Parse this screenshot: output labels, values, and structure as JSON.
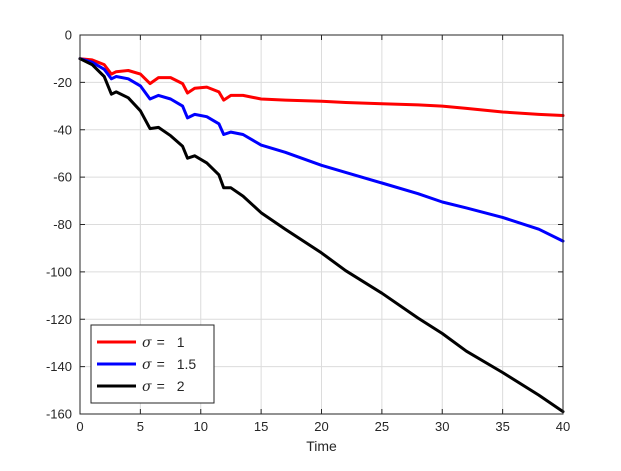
{
  "chart_data": {
    "type": "line",
    "xlabel": "Time",
    "ylabel": "",
    "xlim": [
      0,
      40
    ],
    "ylim": [
      -160,
      0
    ],
    "xticks": [
      0,
      5,
      10,
      15,
      20,
      25,
      30,
      35,
      40
    ],
    "yticks": [
      0,
      -20,
      -40,
      -60,
      -80,
      -100,
      -120,
      -140,
      -160
    ],
    "xtick_labels": [
      "0",
      "5",
      "10",
      "15",
      "20",
      "25",
      "30",
      "35",
      "40"
    ],
    "ytick_labels": [
      "0",
      "-20",
      "-40",
      "-60",
      "-80",
      "-100",
      "-120",
      "-140",
      "-160"
    ],
    "grid": true,
    "legend_position": "bottom-left",
    "series": [
      {
        "name": "σ = 1",
        "legend_symbol": "σ",
        "legend_eq": "=",
        "legend_value": "1",
        "color": "#ff0000",
        "points": [
          [
            0,
            -10
          ],
          [
            1,
            -10.5
          ],
          [
            2,
            -12.5
          ],
          [
            2.6,
            -16.5
          ],
          [
            3,
            -15.5
          ],
          [
            4,
            -15
          ],
          [
            5,
            -16.5
          ],
          [
            5.8,
            -20.5
          ],
          [
            6.5,
            -18
          ],
          [
            7.5,
            -18
          ],
          [
            8.5,
            -20.5
          ],
          [
            8.9,
            -24.5
          ],
          [
            9.5,
            -22.5
          ],
          [
            10.5,
            -22
          ],
          [
            11.5,
            -24
          ],
          [
            11.9,
            -27.5
          ],
          [
            12.5,
            -25.5
          ],
          [
            13.5,
            -25.5
          ],
          [
            15,
            -27
          ],
          [
            17,
            -27.5
          ],
          [
            20,
            -28
          ],
          [
            22,
            -28.5
          ],
          [
            25,
            -29
          ],
          [
            28,
            -29.5
          ],
          [
            30,
            -30
          ],
          [
            32,
            -31
          ],
          [
            35,
            -32.5
          ],
          [
            38,
            -33.5
          ],
          [
            40,
            -34
          ]
        ]
      },
      {
        "name": "σ = 1.5",
        "legend_symbol": "σ",
        "legend_eq": "=",
        "legend_value": "1.5",
        "color": "#0000ff",
        "points": [
          [
            0,
            -10
          ],
          [
            1,
            -11.5
          ],
          [
            2,
            -14.5
          ],
          [
            2.6,
            -18.5
          ],
          [
            3,
            -17.5
          ],
          [
            4,
            -18.5
          ],
          [
            5,
            -21.5
          ],
          [
            5.8,
            -27
          ],
          [
            6.5,
            -25.5
          ],
          [
            7.5,
            -27
          ],
          [
            8.5,
            -30
          ],
          [
            8.9,
            -35
          ],
          [
            9.5,
            -33.5
          ],
          [
            10.5,
            -34.5
          ],
          [
            11.5,
            -37.5
          ],
          [
            11.9,
            -42
          ],
          [
            12.5,
            -41
          ],
          [
            13.5,
            -42
          ],
          [
            15,
            -46.5
          ],
          [
            17,
            -49.5
          ],
          [
            20,
            -55
          ],
          [
            22,
            -58
          ],
          [
            25,
            -62.5
          ],
          [
            28,
            -67
          ],
          [
            30,
            -70.5
          ],
          [
            32,
            -73
          ],
          [
            35,
            -77
          ],
          [
            38,
            -82
          ],
          [
            40,
            -87
          ]
        ]
      },
      {
        "name": "σ = 2",
        "legend_symbol": "σ",
        "legend_eq": "=",
        "legend_value": "2",
        "color": "#000000",
        "points": [
          [
            0,
            -10
          ],
          [
            1,
            -12.5
          ],
          [
            2,
            -17.5
          ],
          [
            2.6,
            -25
          ],
          [
            3,
            -24
          ],
          [
            4,
            -26.5
          ],
          [
            5,
            -32
          ],
          [
            5.8,
            -39.5
          ],
          [
            6.5,
            -39
          ],
          [
            7.5,
            -42.5
          ],
          [
            8.5,
            -47
          ],
          [
            8.9,
            -52
          ],
          [
            9.5,
            -51
          ],
          [
            10.5,
            -54
          ],
          [
            11.5,
            -59
          ],
          [
            11.9,
            -64.5
          ],
          [
            12.5,
            -64.5
          ],
          [
            13.5,
            -68
          ],
          [
            15,
            -75
          ],
          [
            17,
            -82
          ],
          [
            20,
            -92
          ],
          [
            22,
            -99.5
          ],
          [
            25,
            -109
          ],
          [
            28,
            -119.5
          ],
          [
            30,
            -126
          ],
          [
            32,
            -133.5
          ],
          [
            35,
            -142.5
          ],
          [
            38,
            -152
          ],
          [
            40,
            -159
          ]
        ]
      }
    ]
  }
}
